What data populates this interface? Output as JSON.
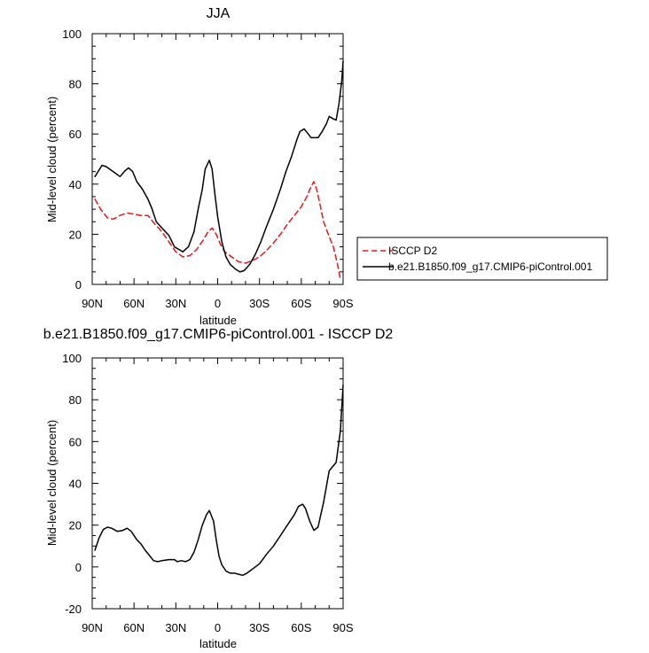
{
  "chart_data": [
    {
      "type": "line",
      "title": "JJA",
      "xlabel": "latitude",
      "ylabel": "Mid-level cloud (percent)",
      "xlim": [
        90,
        -90
      ],
      "ylim": [
        0,
        100
      ],
      "x_ticks": [
        {
          "value": 90,
          "label": "90N"
        },
        {
          "value": 60,
          "label": "60N"
        },
        {
          "value": 30,
          "label": "30N"
        },
        {
          "value": 0,
          "label": "0"
        },
        {
          "value": -30,
          "label": "30S"
        },
        {
          "value": -60,
          "label": "60S"
        },
        {
          "value": -90,
          "label": "90S"
        }
      ],
      "y_ticks": [
        0,
        20,
        40,
        60,
        80,
        100
      ],
      "legend": {
        "placement": "right"
      },
      "series": [
        {
          "name": "ISCCP D2",
          "color": "#e8161b",
          "dash": "dashed",
          "points": [
            [
              88,
              34
            ],
            [
              84,
              30
            ],
            [
              79,
              26.5
            ],
            [
              75,
              26
            ],
            [
              70,
              27.5
            ],
            [
              65,
              28.5
            ],
            [
              60,
              28
            ],
            [
              55,
              27.5
            ],
            [
              50,
              27.5
            ],
            [
              45,
              24
            ],
            [
              40,
              21
            ],
            [
              35,
              17
            ],
            [
              30,
              13
            ],
            [
              25,
              11
            ],
            [
              20,
              11.5
            ],
            [
              15,
              14
            ],
            [
              10,
              18
            ],
            [
              7,
              21
            ],
            [
              4,
              22.5
            ],
            [
              1,
              20
            ],
            [
              -2,
              16
            ],
            [
              -5,
              13
            ],
            [
              -10,
              11
            ],
            [
              -15,
              9
            ],
            [
              -20,
              8.5
            ],
            [
              -25,
              9.5
            ],
            [
              -30,
              11
            ],
            [
              -35,
              13.5
            ],
            [
              -40,
              16.5
            ],
            [
              -45,
              20
            ],
            [
              -50,
              24
            ],
            [
              -55,
              27.5
            ],
            [
              -60,
              31
            ],
            [
              -64,
              35
            ],
            [
              -67,
              39
            ],
            [
              -69,
              41
            ],
            [
              -71,
              38
            ],
            [
              -73,
              33
            ],
            [
              -76,
              25
            ],
            [
              -80,
              19
            ],
            [
              -83,
              15
            ],
            [
              -86,
              8
            ],
            [
              -88,
              2
            ]
          ]
        },
        {
          "name": "b.e21.B1850.f09_g17.CMIP6-piControl.001",
          "color": "#000000",
          "dash": "solid",
          "points": [
            [
              88,
              43
            ],
            [
              83,
              47.5
            ],
            [
              80,
              47
            ],
            [
              75,
              45
            ],
            [
              70,
              43
            ],
            [
              67,
              45
            ],
            [
              64,
              46.5
            ],
            [
              61,
              45
            ],
            [
              58,
              41
            ],
            [
              54,
              38
            ],
            [
              50,
              34
            ],
            [
              47,
              30
            ],
            [
              44,
              25
            ],
            [
              40,
              22.5
            ],
            [
              35,
              19.5
            ],
            [
              31,
              15
            ],
            [
              28,
              14
            ],
            [
              25,
              13
            ],
            [
              21,
              15
            ],
            [
              17,
              21
            ],
            [
              14,
              30
            ],
            [
              11,
              38
            ],
            [
              9,
              46
            ],
            [
              6,
              49.5
            ],
            [
              4,
              46
            ],
            [
              2,
              36
            ],
            [
              0,
              27
            ],
            [
              -3,
              17
            ],
            [
              -6,
              11
            ],
            [
              -9,
              8
            ],
            [
              -13,
              6
            ],
            [
              -16,
              5
            ],
            [
              -19,
              5.5
            ],
            [
              -23,
              8
            ],
            [
              -27,
              12
            ],
            [
              -31,
              17
            ],
            [
              -35,
              23
            ],
            [
              -40,
              30
            ],
            [
              -45,
              38
            ],
            [
              -49,
              45
            ],
            [
              -53,
              51
            ],
            [
              -57,
              58
            ],
            [
              -59,
              61
            ],
            [
              -62,
              62
            ],
            [
              -65,
              60
            ],
            [
              -67,
              58.5
            ],
            [
              -72,
              58.5
            ],
            [
              -75,
              61
            ],
            [
              -78,
              64
            ],
            [
              -80,
              67
            ],
            [
              -83,
              66
            ],
            [
              -85,
              65.5
            ],
            [
              -87,
              72
            ],
            [
              -89,
              81
            ],
            [
              -90,
              89
            ]
          ]
        }
      ]
    },
    {
      "type": "line",
      "title": "b.e21.B1850.f09_g17.CMIP6-piControl.001 - ISCCP D2",
      "xlabel": "latitude",
      "ylabel": "Mid-level cloud (percent)",
      "xlim": [
        90,
        -90
      ],
      "ylim": [
        -20,
        100
      ],
      "x_ticks": [
        {
          "value": 90,
          "label": "90N"
        },
        {
          "value": 60,
          "label": "60N"
        },
        {
          "value": 30,
          "label": "30N"
        },
        {
          "value": 0,
          "label": "0"
        },
        {
          "value": -30,
          "label": "30S"
        },
        {
          "value": -60,
          "label": "60S"
        },
        {
          "value": -90,
          "label": "90S"
        }
      ],
      "y_ticks": [
        -20,
        0,
        20,
        40,
        60,
        80,
        100
      ],
      "series": [
        {
          "color": "#000000",
          "dash": "solid",
          "points": [
            [
              88,
              8
            ],
            [
              85,
              14
            ],
            [
              82,
              18
            ],
            [
              79,
              19
            ],
            [
              76,
              18.5
            ],
            [
              72,
              17
            ],
            [
              68,
              17.5
            ],
            [
              65,
              18.5
            ],
            [
              62,
              17
            ],
            [
              58,
              13
            ],
            [
              55,
              11
            ],
            [
              52,
              8
            ],
            [
              49,
              5.5
            ],
            [
              46,
              3
            ],
            [
              43,
              2.5
            ],
            [
              40,
              3
            ],
            [
              35,
              3.5
            ],
            [
              31,
              3.5
            ],
            [
              29,
              2.5
            ],
            [
              26,
              3
            ],
            [
              23,
              2.5
            ],
            [
              20,
              3.5
            ],
            [
              17,
              7
            ],
            [
              14,
              13
            ],
            [
              11,
              20
            ],
            [
              8,
              25
            ],
            [
              6,
              27
            ],
            [
              3,
              22
            ],
            [
              1,
              13
            ],
            [
              -1,
              5
            ],
            [
              -3,
              1
            ],
            [
              -6,
              -2
            ],
            [
              -9,
              -3
            ],
            [
              -12,
              -3
            ],
            [
              -15,
              -3.5
            ],
            [
              -18,
              -4
            ],
            [
              -21,
              -3
            ],
            [
              -25,
              -1
            ],
            [
              -30,
              1.5
            ],
            [
              -35,
              6
            ],
            [
              -40,
              10
            ],
            [
              -45,
              15
            ],
            [
              -50,
              20
            ],
            [
              -55,
              25
            ],
            [
              -58,
              29
            ],
            [
              -61,
              30
            ],
            [
              -63,
              28
            ],
            [
              -66,
              22
            ],
            [
              -69,
              17.5
            ],
            [
              -72,
              19
            ],
            [
              -76,
              31
            ],
            [
              -80,
              46
            ],
            [
              -85,
              50
            ],
            [
              -88,
              65
            ],
            [
              -90,
              87
            ]
          ]
        }
      ]
    }
  ]
}
